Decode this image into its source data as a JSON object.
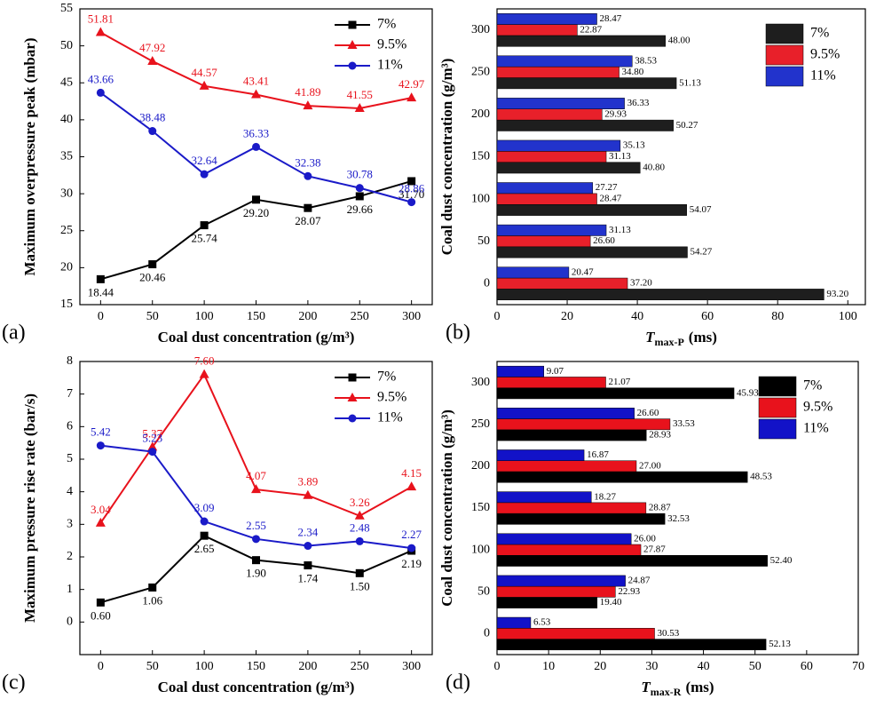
{
  "chart_data": [
    {
      "type": "line",
      "panel_label": "(a)",
      "xlabel": "Coal dust concentration (g/m³)",
      "ylabel": "Maximum overpressure peak (mbar)",
      "x": [
        0,
        50,
        100,
        150,
        200,
        250,
        300
      ],
      "xlim": [
        -20,
        320
      ],
      "xticks": [
        0,
        50,
        100,
        150,
        200,
        250,
        300
      ],
      "ylim": [
        15,
        55
      ],
      "yticks": [
        15,
        20,
        25,
        30,
        35,
        40,
        45,
        50,
        55
      ],
      "legend": "upper right",
      "series": [
        {
          "name": "7%",
          "color": "#000000",
          "marker": "square",
          "values": [
            18.44,
            20.46,
            25.74,
            29.2,
            28.07,
            29.66,
            31.7
          ],
          "value_labels": [
            "18.44",
            "20.46",
            "25.74",
            "29.20",
            "28.07",
            "29.66",
            "31.70"
          ]
        },
        {
          "name": "9.5%",
          "color": "#e8121c",
          "marker": "triangle",
          "values": [
            51.81,
            47.92,
            44.57,
            43.41,
            41.89,
            41.55,
            42.97
          ],
          "value_labels": [
            "51.81",
            "47.92",
            "44.57",
            "43.41",
            "41.89",
            "41.55",
            "42.97"
          ]
        },
        {
          "name": "11%",
          "color": "#1a1ac8",
          "marker": "circle",
          "values": [
            43.66,
            38.48,
            32.64,
            36.33,
            32.38,
            30.78,
            28.86
          ],
          "value_labels": [
            "43.66",
            "38.48",
            "32.64",
            "36.33",
            "32.38",
            "30.78",
            "28.86"
          ]
        }
      ]
    },
    {
      "type": "barh",
      "panel_label": "(b)",
      "xlabel": {
        "main": "T",
        "sub": "max-P",
        "unit": "(ms)"
      },
      "ylabel": "Coal dust concentration (g/m³)",
      "categories": [
        "0",
        "50",
        "100",
        "150",
        "200",
        "250",
        "300"
      ],
      "xlim": [
        0,
        105
      ],
      "xticks": [
        0,
        20,
        40,
        60,
        80,
        100
      ],
      "legend": "upper right",
      "series": [
        {
          "name": "7%",
          "color": "#1e1e1e",
          "values": [
            93.2,
            54.27,
            54.07,
            40.8,
            50.27,
            51.13,
            48.0
          ],
          "value_labels": [
            "93.20",
            "54.27",
            "54.07",
            "40.80",
            "50.27",
            "51.13",
            "48.00"
          ]
        },
        {
          "name": "9.5%",
          "color": "#e8202a",
          "values": [
            37.2,
            26.6,
            28.47,
            31.13,
            29.93,
            34.8,
            22.87
          ],
          "value_labels": [
            "37.20",
            "26.60",
            "28.47",
            "31.13",
            "29.93",
            "34.80",
            "22.87"
          ]
        },
        {
          "name": "11%",
          "color": "#2233cc",
          "values": [
            20.47,
            31.13,
            27.27,
            35.13,
            36.33,
            38.53,
            28.47
          ],
          "value_labels": [
            "20.47",
            "31.13",
            "27.27",
            "35.13",
            "36.33",
            "38.53",
            "28.47"
          ]
        }
      ]
    },
    {
      "type": "line",
      "panel_label": "(c)",
      "xlabel": "Coal dust concentration (g/m³)",
      "ylabel": "Maximum pressure rise rate (bar/s)",
      "x": [
        0,
        50,
        100,
        150,
        200,
        250,
        300
      ],
      "xlim": [
        -20,
        320
      ],
      "xticks": [
        0,
        50,
        100,
        150,
        200,
        250,
        300
      ],
      "ylim": [
        -1,
        8
      ],
      "yticks": [
        0,
        1,
        2,
        3,
        4,
        5,
        6,
        7,
        8
      ],
      "legend": "upper right",
      "series": [
        {
          "name": "7%",
          "color": "#000000",
          "marker": "square",
          "values": [
            0.6,
            1.06,
            2.65,
            1.9,
            1.74,
            1.5,
            2.19
          ],
          "value_labels": [
            "0.60",
            "1.06",
            "2.65",
            "1.90",
            "1.74",
            "1.50",
            "2.19"
          ]
        },
        {
          "name": "9.5%",
          "color": "#e8121c",
          "marker": "triangle",
          "values": [
            3.04,
            5.37,
            7.6,
            4.07,
            3.89,
            3.26,
            4.15
          ],
          "value_labels": [
            "3.04",
            "5.37",
            "7.60",
            "4.07",
            "3.89",
            "3.26",
            "4.15"
          ]
        },
        {
          "name": "11%",
          "color": "#1a1ac8",
          "marker": "circle",
          "values": [
            5.42,
            5.23,
            3.09,
            2.55,
            2.34,
            2.48,
            2.27
          ],
          "value_labels": [
            "5.42",
            "5.23",
            "3.09",
            "2.55",
            "2.34",
            "2.48",
            "2.27"
          ]
        }
      ]
    },
    {
      "type": "barh",
      "panel_label": "(d)",
      "xlabel": {
        "main": "T",
        "sub": "max-R",
        "unit": "(ms)"
      },
      "ylabel": "Coal dust concentration (g/m³)",
      "categories": [
        "0",
        "50",
        "100",
        "150",
        "200",
        "250",
        "300"
      ],
      "xlim": [
        0,
        70
      ],
      "xticks": [
        0,
        10,
        20,
        30,
        40,
        50,
        60,
        70
      ],
      "legend": "upper right",
      "series": [
        {
          "name": "7%",
          "color": "#000000",
          "values": [
            52.13,
            19.4,
            52.4,
            32.53,
            48.53,
            28.93,
            45.93
          ],
          "value_labels": [
            "52.13",
            "19.40",
            "52.40",
            "32.53",
            "48.53",
            "28.93",
            "45.93"
          ]
        },
        {
          "name": "9.5%",
          "color": "#e8121c",
          "values": [
            30.53,
            22.93,
            27.87,
            28.87,
            27.0,
            33.53,
            21.07
          ],
          "value_labels": [
            "30.53",
            "22.93",
            "27.87",
            "28.87",
            "27.00",
            "33.53",
            "21.07"
          ]
        },
        {
          "name": "11%",
          "color": "#1212c8",
          "values": [
            6.53,
            24.87,
            26.0,
            18.27,
            16.87,
            26.6,
            9.07
          ],
          "value_labels": [
            "6.53",
            "24.87",
            "26.00",
            "18.27",
            "16.87",
            "26.60",
            "9.07"
          ]
        }
      ]
    }
  ]
}
